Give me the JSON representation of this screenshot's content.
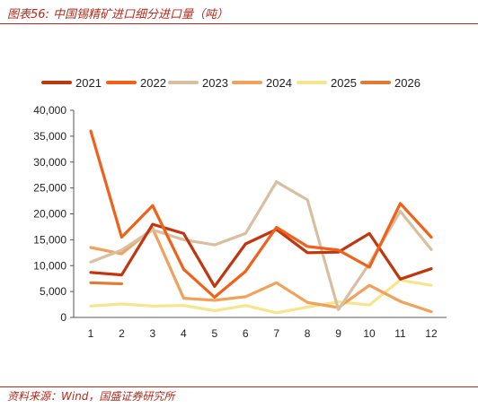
{
  "figure": {
    "title": "图表56:  中国锡精矿进口细分进口量（吨）",
    "source": "资料来源：Wind，国盛证券研究所"
  },
  "chart_data": {
    "type": "line",
    "title": "",
    "xlabel": "",
    "ylabel": "",
    "x": [
      1,
      2,
      3,
      4,
      5,
      6,
      7,
      8,
      9,
      10,
      11,
      12
    ],
    "x_tick_labels": [
      "1",
      "2",
      "3",
      "4",
      "5",
      "6",
      "7",
      "8",
      "9",
      "10",
      "11",
      "12"
    ],
    "ylim": [
      0,
      40000
    ],
    "y_ticks": [
      0,
      5000,
      10000,
      15000,
      20000,
      25000,
      30000,
      35000,
      40000
    ],
    "y_tick_labels": [
      "0",
      "5,000",
      "10,000",
      "15,000",
      "20,000",
      "25,000",
      "30,000",
      "35,000",
      "40,000"
    ],
    "grid": false,
    "legend_position": "top",
    "series": [
      {
        "name": "2021",
        "color": "#c0360f",
        "values": [
          8700,
          8200,
          18000,
          16200,
          6000,
          14200,
          17000,
          12500,
          12600,
          16200,
          7400,
          9400
        ]
      },
      {
        "name": "2022",
        "color": "#f0611a",
        "values": [
          36000,
          15500,
          21600,
          9300,
          3900,
          8900,
          17400,
          13700,
          13000,
          9700,
          22000,
          15500
        ]
      },
      {
        "name": "2023",
        "color": "#d8bfa0",
        "values": [
          10700,
          13000,
          16900,
          15000,
          14000,
          16200,
          26200,
          22700,
          1500,
          10400,
          20500,
          13100
        ]
      },
      {
        "name": "2024",
        "color": "#f0a15c",
        "values": [
          13500,
          12300,
          17200,
          3700,
          3300,
          4000,
          6700,
          2900,
          1900,
          6200,
          3100,
          1100
        ]
      },
      {
        "name": "2025",
        "color": "#f5e58e",
        "values": [
          2200,
          2600,
          2200,
          2300,
          1300,
          2300,
          900,
          2000,
          3000,
          2400,
          7200,
          6200
        ]
      },
      {
        "name": "2026",
        "color": "#e07b36",
        "values": [
          6700,
          6500,
          null,
          null,
          null,
          null,
          null,
          null,
          null,
          null,
          null,
          null
        ]
      }
    ]
  }
}
